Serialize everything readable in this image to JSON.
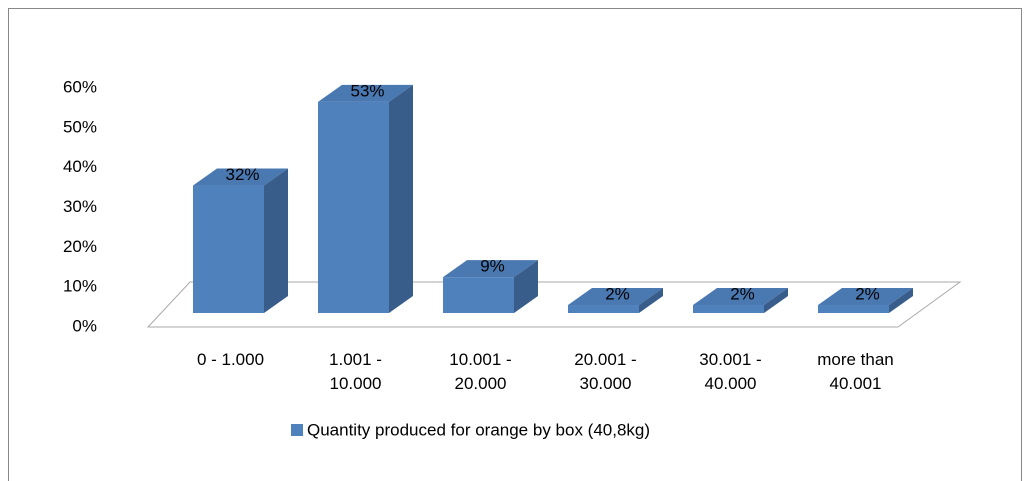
{
  "chart_data": {
    "type": "bar3d",
    "categories": [
      "0 - 1.000",
      "1.001 - 10.000",
      "10.001 - 20.000",
      "20.001 - 30.000",
      "30.001 - 40.000",
      "more than 40.001"
    ],
    "series": [
      {
        "name": "Quantity produced for orange by box (40,8kg)",
        "color": "#4f81bd",
        "values": [
          32,
          53,
          9,
          2,
          2,
          2
        ],
        "value_labels": [
          "32%",
          "53%",
          "9%",
          "2%",
          "2%",
          "2%"
        ]
      }
    ],
    "ylim": [
      0,
      60
    ],
    "yticks": [
      {
        "value": 0,
        "label": "0%"
      },
      {
        "value": 10,
        "label": "10%"
      },
      {
        "value": 20,
        "label": "20%"
      },
      {
        "value": 30,
        "label": "30%"
      },
      {
        "value": 40,
        "label": "40%"
      },
      {
        "value": 50,
        "label": "50%"
      },
      {
        "value": 60,
        "label": "60%"
      }
    ],
    "legend": "bottom"
  }
}
